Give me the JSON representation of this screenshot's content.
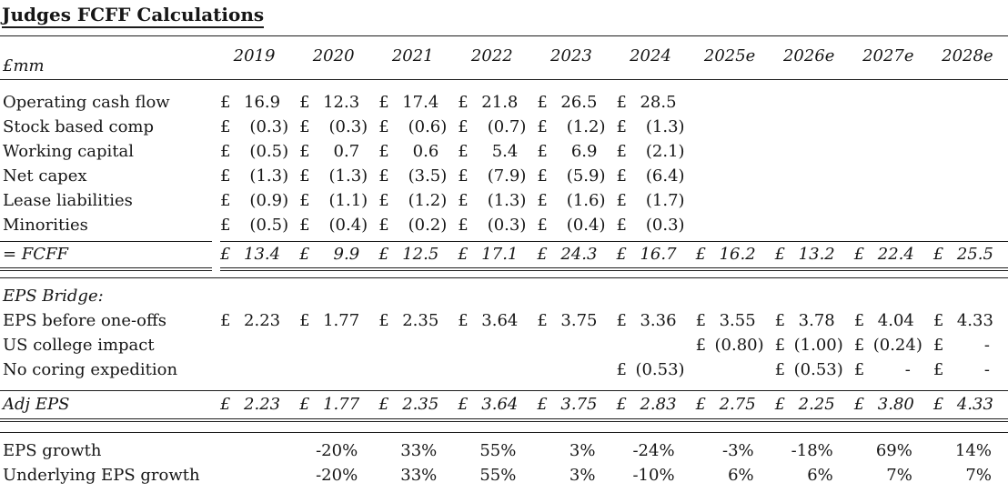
{
  "title": "Judges FCFF Calculations",
  "chart_data": {
    "type": "table",
    "title": "Judges FCFF Calculations",
    "unit_label": "£mm",
    "columns": [
      "2019",
      "2020",
      "2021",
      "2022",
      "2023",
      "2024",
      "2025e",
      "2026e",
      "2027e",
      "2028e"
    ],
    "sections": [
      {
        "name": "cash-flow-items",
        "rows": [
          {
            "label": "Operating cash flow",
            "values": [
              "£ 16.9",
              "£ 12.3",
              "£ 17.4",
              "£ 21.8",
              "£ 26.5",
              "£ 28.5",
              "",
              "",
              "",
              ""
            ]
          },
          {
            "label": "Stock based comp",
            "values": [
              "£ (0.3)",
              "£ (0.3)",
              "£ (0.6)",
              "£ (0.7)",
              "£ (1.2)",
              "£ (1.3)",
              "",
              "",
              "",
              ""
            ]
          },
          {
            "label": "Working capital",
            "values": [
              "£ (0.5)",
              "£ 0.7",
              "£ 0.6",
              "£ 5.4",
              "£ 6.9",
              "£ (2.1)",
              "",
              "",
              "",
              ""
            ]
          },
          {
            "label": "Net capex",
            "values": [
              "£ (1.3)",
              "£ (1.3)",
              "£ (3.5)",
              "£ (7.9)",
              "£ (5.9)",
              "£ (6.4)",
              "",
              "",
              "",
              ""
            ]
          },
          {
            "label": "Lease liabilities",
            "values": [
              "£ (0.9)",
              "£ (1.1)",
              "£ (1.2)",
              "£ (1.3)",
              "£ (1.6)",
              "£ (1.7)",
              "",
              "",
              "",
              ""
            ]
          },
          {
            "label": "Minorities",
            "values": [
              "£ (0.5)",
              "£ (0.4)",
              "£ (0.2)",
              "£ (0.3)",
              "£ (0.4)",
              "£ (0.3)",
              "",
              "",
              "",
              ""
            ]
          }
        ]
      },
      {
        "name": "fcff-total",
        "rows": [
          {
            "label": "= FCFF",
            "values": [
              "£ 13.4",
              "£ 9.9",
              "£ 12.5",
              "£ 17.1",
              "£ 24.3",
              "£ 16.7",
              "£ 16.2",
              "£ 13.2",
              "£ 22.4",
              "£ 25.5"
            ]
          }
        ]
      },
      {
        "name": "eps-bridge",
        "heading": "EPS Bridge:",
        "rows": [
          {
            "label": "EPS before one-offs",
            "values": [
              "£ 2.23",
              "£ 1.77",
              "£ 2.35",
              "£ 3.64",
              "£ 3.75",
              "£ 3.36",
              "£ 3.55",
              "£ 3.78",
              "£ 4.04",
              "£ 4.33"
            ]
          },
          {
            "label": "US college impact",
            "values": [
              "",
              "",
              "",
              "",
              "",
              "",
              "£(0.80)",
              "£(1.00)",
              "£(0.24)",
              "£ -"
            ]
          },
          {
            "label": "No coring expedition",
            "values": [
              "",
              "",
              "",
              "",
              "",
              "£(0.53)",
              "",
              "£(0.53)",
              "£ -",
              "£ -"
            ]
          }
        ]
      },
      {
        "name": "adj-eps",
        "rows": [
          {
            "label": "Adj EPS",
            "values": [
              "£ 2.23",
              "£ 1.77",
              "£ 2.35",
              "£ 3.64",
              "£ 3.75",
              "£ 2.83",
              "£ 2.75",
              "£ 2.25",
              "£ 3.80",
              "£ 4.33"
            ]
          }
        ]
      },
      {
        "name": "eps-growth",
        "rows": [
          {
            "label": "EPS growth",
            "values": [
              "",
              "-20%",
              "33%",
              "55%",
              "3%",
              "-24%",
              "-3%",
              "-18%",
              "69%",
              "14%"
            ]
          },
          {
            "label": "Underlying EPS growth",
            "values": [
              "",
              "-20%",
              "33%",
              "55%",
              "3%",
              "-10%",
              "6%",
              "6%",
              "7%",
              "7%"
            ]
          }
        ]
      }
    ]
  }
}
